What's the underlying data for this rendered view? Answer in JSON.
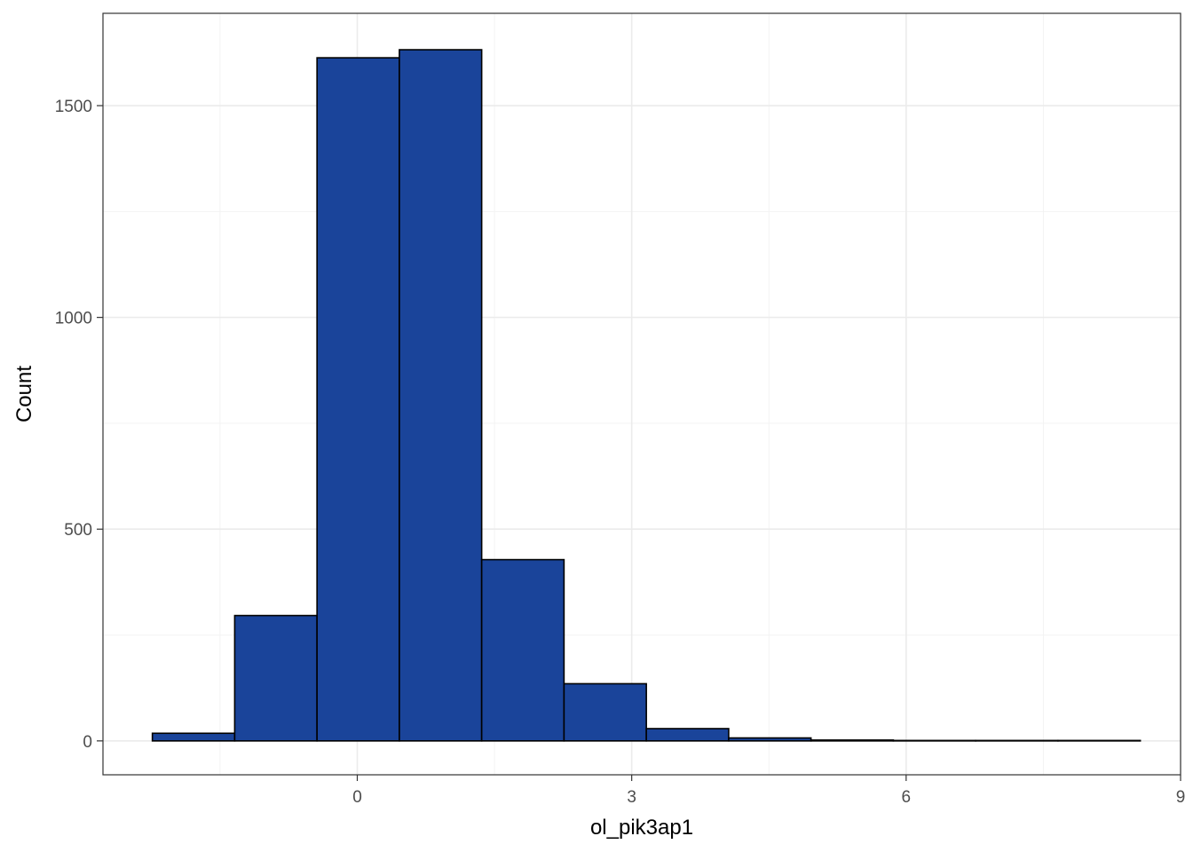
{
  "chart_data": {
    "type": "bar",
    "subtype": "histogram",
    "title": "",
    "xlabel": "ol_pik3ap1",
    "ylabel": "Count",
    "xlim": [
      -2.78,
      9.0
    ],
    "ylim": [
      -80,
      1718
    ],
    "x_ticks": [
      0,
      3,
      6,
      9
    ],
    "y_ticks": [
      0,
      500,
      1000,
      1500
    ],
    "grid": true,
    "legend": "none",
    "bar_color": "#1a449a",
    "bar_edge_color": "#000000",
    "bins": [
      {
        "x0": -2.24,
        "x1": -1.34,
        "count": 18
      },
      {
        "x0": -1.34,
        "x1": -0.44,
        "count": 296
      },
      {
        "x0": -0.44,
        "x1": 0.46,
        "count": 1613
      },
      {
        "x0": 0.46,
        "x1": 1.36,
        "count": 1632
      },
      {
        "x0": 1.36,
        "x1": 2.26,
        "count": 428
      },
      {
        "x0": 2.26,
        "x1": 3.16,
        "count": 135
      },
      {
        "x0": 3.16,
        "x1": 4.06,
        "count": 29
      },
      {
        "x0": 4.06,
        "x1": 4.96,
        "count": 7
      },
      {
        "x0": 4.96,
        "x1": 5.86,
        "count": 2
      },
      {
        "x0": 5.86,
        "x1": 6.76,
        "count": 1
      },
      {
        "x0": 6.76,
        "x1": 7.66,
        "count": 1
      },
      {
        "x0": 7.66,
        "x1": 8.56,
        "count": 1
      }
    ]
  }
}
